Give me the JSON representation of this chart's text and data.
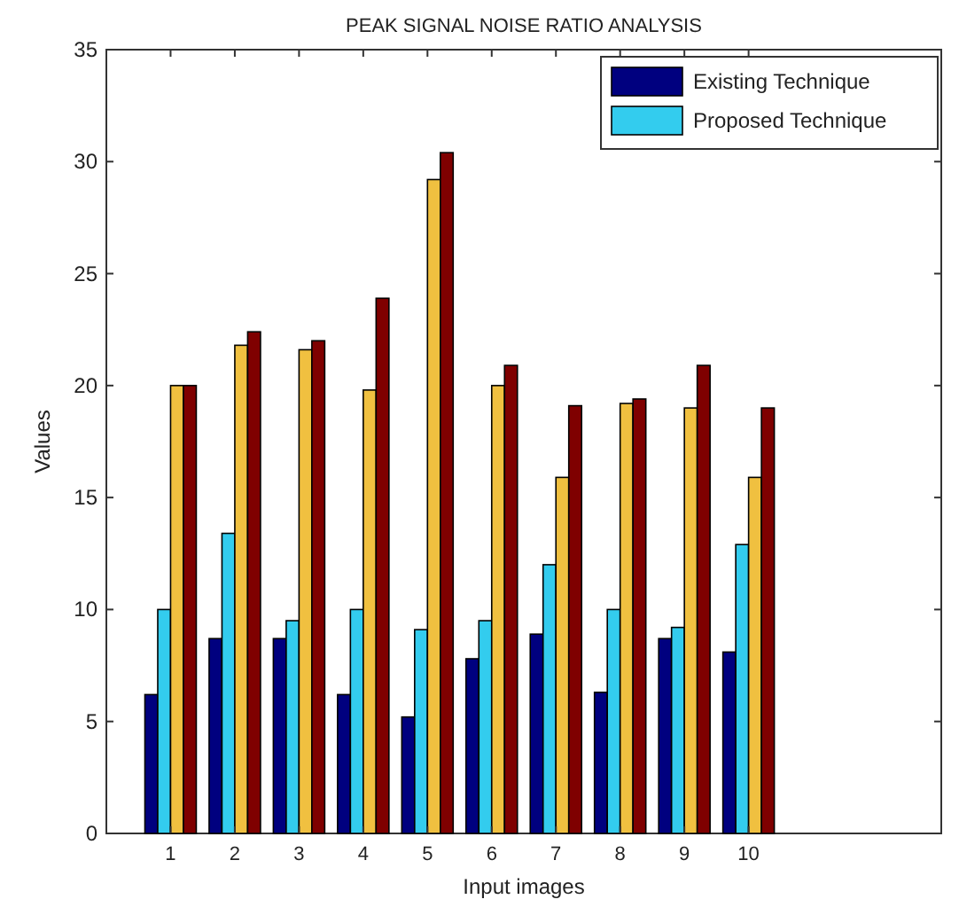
{
  "chart_data": {
    "type": "bar",
    "title": "PEAK SIGNAL NOISE RATIO ANALYSIS",
    "xlabel": "Input images",
    "ylabel": "Values",
    "x": [
      1,
      2,
      3,
      4,
      5,
      6,
      7,
      8,
      9,
      10
    ],
    "series": [
      {
        "name": "Existing Technique",
        "color": "#00007f",
        "values": [
          6.2,
          8.7,
          8.7,
          6.2,
          5.2,
          7.8,
          8.9,
          6.3,
          8.7,
          8.1
        ]
      },
      {
        "name": "Proposed Technique",
        "color": "#33ccee",
        "values": [
          10.0,
          13.4,
          9.5,
          10.0,
          9.1,
          9.5,
          12.0,
          10.0,
          9.2,
          12.9
        ]
      },
      {
        "color": "#f0c040",
        "values": [
          20.0,
          21.8,
          21.6,
          19.8,
          29.2,
          20.0,
          15.9,
          19.2,
          19.0,
          15.9
        ]
      },
      {
        "color": "#7f0000",
        "values": [
          20.0,
          22.4,
          22.0,
          23.9,
          30.4,
          20.9,
          19.1,
          19.4,
          20.9,
          19.0
        ]
      }
    ],
    "xlim": [
      0,
      13
    ],
    "xticks": [
      1,
      2,
      3,
      4,
      5,
      6,
      7,
      8,
      9,
      10
    ],
    "ylim": [
      0,
      35
    ],
    "yticks": [
      0,
      5,
      10,
      15,
      20,
      25,
      30,
      35
    ],
    "legend": "top right",
    "grid": false
  }
}
